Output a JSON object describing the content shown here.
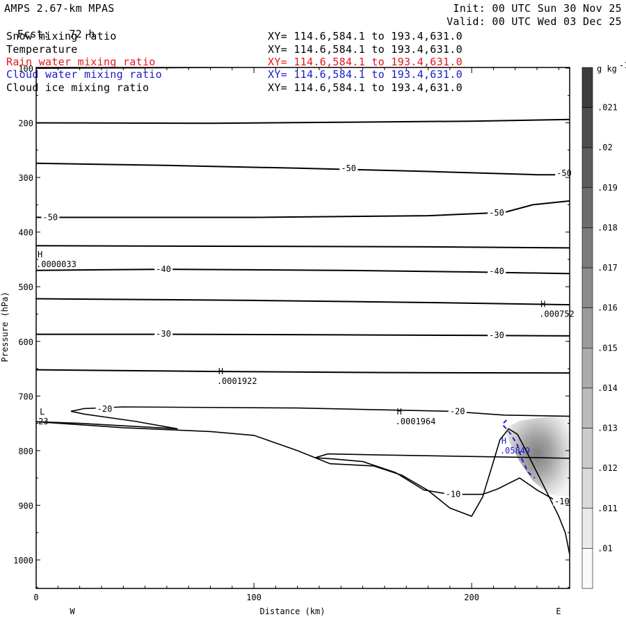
{
  "header": {
    "model": "AMPS 2.67-km MPAS",
    "fcst_label": "Fcst:",
    "fcst_value": "72 h",
    "init": "Init: 00 UTC Sun 30 Nov 25",
    "valid": "Valid: 00 UTC Wed 03 Dec 25"
  },
  "fields": [
    {
      "name": "Snow mixing ratio",
      "xy": "XY= 114.6,584.1 to 193.4,631.0",
      "color": "#000000"
    },
    {
      "name": "Temperature",
      "xy": "XY= 114.6,584.1 to 193.4,631.0",
      "color": "#000000"
    },
    {
      "name": "Rain water mixing ratio",
      "xy": "XY= 114.6,584.1 to 193.4,631.0",
      "color": "#e8131b"
    },
    {
      "name": "Cloud water mixing ratio",
      "xy": "XY= 114.6,584.1 to 193.4,631.0",
      "color": "#1a1acc"
    },
    {
      "name": "Cloud ice mixing ratio",
      "xy": "XY= 114.6,584.1 to 193.4,631.0",
      "color": "#000000"
    }
  ],
  "chart_data": {
    "type": "contour",
    "xlabel": "Distance (km)",
    "ylabel": "Pressure (hPa)",
    "xlim": [
      0,
      245
    ],
    "ylim": [
      1050,
      100
    ],
    "x_ticks": [
      0,
      100,
      200
    ],
    "y_ticks": [
      100,
      200,
      300,
      400,
      500,
      600,
      700,
      800,
      900,
      1000
    ],
    "x_end_labels": {
      "left": "W",
      "right": "E"
    },
    "colorbar": {
      "units": "g kg",
      "units_exp": "-1",
      "levels": [
        0.021,
        0.02,
        0.019,
        0.018,
        0.017,
        0.016,
        0.015,
        0.014,
        0.013,
        0.012,
        0.011,
        0.01
      ],
      "labels": [
        ".021",
        ".02",
        ".019",
        ".018",
        ".017",
        ".016",
        ".015",
        ".014",
        ".013",
        ".012",
        ".011",
        ".01"
      ]
    },
    "temperature_contour_labels": [
      {
        "text": "-50",
        "x": 140,
        "p": 283
      },
      {
        "text": "-50",
        "x": 239,
        "p": 292
      },
      {
        "text": "-50",
        "x": 3,
        "p": 373
      },
      {
        "text": "-50",
        "x": 208,
        "p": 365
      },
      {
        "text": "-40",
        "x": 55,
        "p": 468
      },
      {
        "text": "-40",
        "x": 208,
        "p": 472
      },
      {
        "text": "-30",
        "x": 55,
        "p": 586
      },
      {
        "text": "-30",
        "x": 208,
        "p": 589
      },
      {
        "text": "-20",
        "x": 28,
        "p": 724
      },
      {
        "text": "-20",
        "x": 190,
        "p": 728
      },
      {
        "text": "-10",
        "x": 188,
        "p": 880
      },
      {
        "text": "-10",
        "x": 238,
        "p": 893
      }
    ],
    "extrema_labels": [
      {
        "text": ".0000033",
        "x": 0,
        "p": 464,
        "mark": "H"
      },
      {
        "text": ".000752",
        "x": 231,
        "p": 555,
        "mark": "H"
      },
      {
        "text": ".0001922",
        "x": 83,
        "p": 678,
        "mark": "H"
      },
      {
        "text": ".0001964",
        "x": 165,
        "p": 752,
        "mark": "H"
      },
      {
        "text": "23",
        "x": 1,
        "p": 752,
        "mark": "L"
      },
      {
        "text": ".05849",
        "x": 213,
        "p": 805,
        "mark": "H"
      }
    ],
    "isotherms_p": [
      [
        [
          0,
          100
        ],
        [
          60,
          99
        ],
        [
          100,
          98
        ],
        [
          245,
          96
        ]
      ],
      [
        [
          0,
          200
        ],
        [
          80,
          201
        ],
        [
          140,
          199
        ],
        [
          200,
          197
        ],
        [
          245,
          194
        ]
      ],
      [
        [
          0,
          274
        ],
        [
          60,
          278
        ],
        [
          120,
          283
        ],
        [
          180,
          289
        ],
        [
          230,
          295
        ],
        [
          245,
          295
        ]
      ],
      [
        [
          0,
          373
        ],
        [
          100,
          373
        ],
        [
          180,
          370
        ],
        [
          215,
          364
        ],
        [
          228,
          350
        ],
        [
          245,
          343
        ]
      ],
      [
        [
          0,
          425
        ],
        [
          100,
          426
        ],
        [
          180,
          427
        ],
        [
          245,
          429
        ]
      ],
      [
        [
          0,
          470
        ],
        [
          60,
          468
        ],
        [
          140,
          470
        ],
        [
          200,
          473
        ],
        [
          245,
          476
        ]
      ],
      [
        [
          0,
          522
        ],
        [
          100,
          525
        ],
        [
          180,
          529
        ],
        [
          245,
          533
        ]
      ],
      [
        [
          0,
          587
        ],
        [
          60,
          587
        ],
        [
          140,
          588
        ],
        [
          200,
          589
        ],
        [
          245,
          590
        ]
      ],
      [
        [
          0,
          652
        ],
        [
          80,
          655
        ],
        [
          160,
          657
        ],
        [
          245,
          658
        ]
      ]
    ],
    "isotherm_minus20": [
      [
        245,
        737
      ],
      [
        215,
        735
      ],
      [
        190,
        728
      ],
      [
        120,
        722
      ],
      [
        40,
        720
      ],
      [
        22,
        723
      ],
      [
        16,
        728
      ],
      [
        22,
        733
      ],
      [
        45,
        746
      ],
      [
        65,
        760
      ],
      [
        20,
        750
      ],
      [
        0,
        747
      ]
    ],
    "isotherm_minus10": [
      [
        245,
        814
      ],
      [
        220,
        812
      ],
      [
        160,
        808
      ],
      [
        134,
        806
      ],
      [
        128,
        813
      ],
      [
        136,
        815
      ],
      [
        150,
        820
      ],
      [
        165,
        840
      ],
      [
        178,
        872
      ],
      [
        190,
        880
      ],
      [
        205,
        880
      ],
      [
        212,
        870
      ],
      [
        222,
        850
      ],
      [
        230,
        872
      ],
      [
        238,
        890
      ],
      [
        245,
        891
      ]
    ],
    "terrain": [
      [
        0,
        747
      ],
      [
        40,
        758
      ],
      [
        80,
        765
      ],
      [
        100,
        772
      ],
      [
        120,
        800
      ],
      [
        135,
        824
      ],
      [
        155,
        828
      ],
      [
        168,
        845
      ],
      [
        180,
        873
      ],
      [
        190,
        905
      ],
      [
        200,
        920
      ],
      [
        205,
        885
      ],
      [
        210,
        820
      ],
      [
        213,
        780
      ],
      [
        217,
        760
      ],
      [
        221,
        770
      ],
      [
        225,
        800
      ],
      [
        230,
        840
      ],
      [
        235,
        880
      ],
      [
        240,
        920
      ],
      [
        243,
        950
      ],
      [
        245,
        990
      ]
    ]
  }
}
